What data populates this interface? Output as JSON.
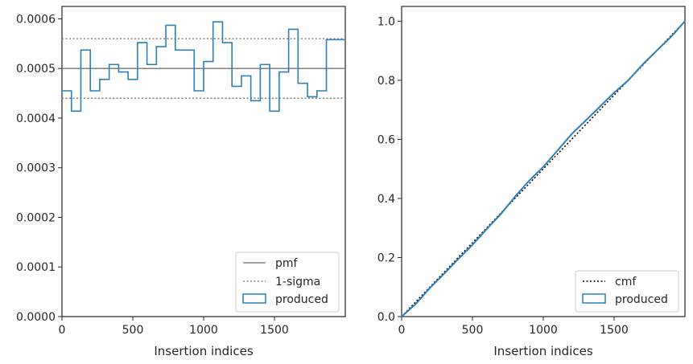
{
  "chart_data": [
    {
      "type": "step",
      "xlabel": "Insertion indices",
      "ylabel": "",
      "xlim": [
        0,
        2000
      ],
      "ylim": [
        0,
        0.000625
      ],
      "xticks": [
        "0",
        "500",
        "1000",
        "1500"
      ],
      "xtick_values": [
        0,
        500,
        1000,
        1500
      ],
      "yticks": [
        "0.0000",
        "0.0001",
        "0.0002",
        "0.0003",
        "0.0004",
        "0.0005",
        "0.0006"
      ],
      "ytick_values": [
        0,
        0.0001,
        0.0002,
        0.0003,
        0.0004,
        0.0005,
        0.0006
      ],
      "grid": false,
      "legend_position": "bottom-right",
      "hlines": [
        {
          "name": "pmf",
          "y": 0.0005,
          "style": "solid",
          "color": "#808080"
        },
        {
          "name": "1-sigma",
          "y": 0.00056,
          "style": "dotted",
          "color": "#808080"
        },
        {
          "name": "1-sigma",
          "y": 0.00044,
          "style": "dotted",
          "color": "#808080"
        }
      ],
      "series": [
        {
          "name": "produced",
          "color": "#2e7fb8",
          "bin_width": 66.67,
          "values": [
            0.000455,
            0.000414,
            0.000537,
            0.000455,
            0.000478,
            0.000508,
            0.000493,
            0.000478,
            0.000552,
            0.000508,
            0.000544,
            0.000587,
            0.000537,
            0.000537,
            0.000455,
            0.000514,
            0.000594,
            0.000552,
            0.000464,
            0.000485,
            0.000435,
            0.000508,
            0.000414,
            0.000493,
            0.000579,
            0.00047,
            0.000443,
            0.000455,
            0.000558,
            0.000558
          ]
        }
      ],
      "legend": [
        "pmf",
        "1-sigma",
        "produced"
      ]
    },
    {
      "type": "line",
      "xlabel": "Insertion indices",
      "ylabel": "",
      "xlim": [
        0,
        2000
      ],
      "ylim": [
        0,
        1.05
      ],
      "xticks": [
        "0",
        "500",
        "1000",
        "1500"
      ],
      "xtick_values": [
        0,
        500,
        1000,
        1500
      ],
      "yticks": [
        "0.0",
        "0.2",
        "0.4",
        "0.6",
        "0.8",
        "1.0"
      ],
      "ytick_values": [
        0,
        0.2,
        0.4,
        0.6,
        0.8,
        1.0
      ],
      "grid": false,
      "legend_position": "bottom-right",
      "series": [
        {
          "name": "cmf",
          "style": "dotted",
          "color": "#000000",
          "x": [
            0,
            2000
          ],
          "y": [
            0,
            1.0
          ]
        },
        {
          "name": "produced",
          "style": "solid",
          "color": "#2e7fb8",
          "x": [
            0,
            100,
            200,
            300,
            400,
            500,
            600,
            700,
            800,
            900,
            1000,
            1100,
            1200,
            1300,
            1400,
            1500,
            1600,
            1700,
            1800,
            1900,
            2000
          ],
          "y": [
            0,
            0.043,
            0.097,
            0.145,
            0.195,
            0.243,
            0.296,
            0.347,
            0.406,
            0.46,
            0.507,
            0.562,
            0.618,
            0.664,
            0.711,
            0.758,
            0.8,
            0.853,
            0.9,
            0.946,
            1.0
          ]
        }
      ],
      "legend": [
        "cmf",
        "produced"
      ]
    }
  ]
}
